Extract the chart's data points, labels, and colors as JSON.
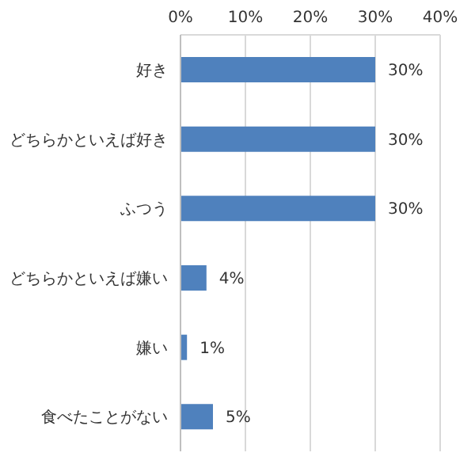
{
  "chart_data": {
    "type": "bar",
    "orientation": "horizontal",
    "categories": [
      "好き",
      "どちらかといえば好き",
      "ふつう",
      "どちらかといえば嫌い",
      "嫌い",
      "食べたことがない"
    ],
    "values": [
      30,
      30,
      30,
      4,
      1,
      5
    ],
    "value_labels": [
      "30%",
      "30%",
      "30%",
      "4%",
      "1%",
      "5%"
    ],
    "color": "#4f81bd",
    "xlim": [
      0,
      40
    ],
    "xticks": [
      {
        "value": 0,
        "label": "0%"
      },
      {
        "value": 10,
        "label": "10%"
      },
      {
        "value": 20,
        "label": "20%"
      },
      {
        "value": 30,
        "label": "30%"
      },
      {
        "value": 40,
        "label": "40%"
      }
    ],
    "grid": "x",
    "legend": false
  }
}
